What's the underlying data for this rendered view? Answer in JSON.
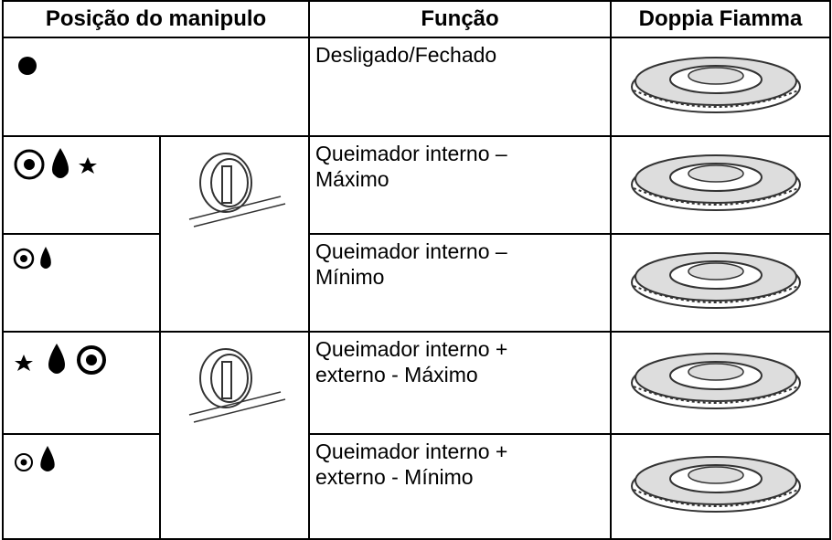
{
  "table": {
    "header": [
      "Posição do manipulo",
      "Função",
      "Doppia Fiamma"
    ],
    "rows": [
      {
        "function": [
          "Desligado/Fechado"
        ]
      },
      {
        "function": [
          "Queimador interno –",
          "Máximo"
        ]
      },
      {
        "function": [
          "Queimador interno –",
          "Mínimo"
        ]
      },
      {
        "function": [
          "Queimador interno +",
          "externo - Máximo"
        ]
      },
      {
        "function": [
          "Queimador interno +",
          "externo - Mínimo"
        ]
      }
    ]
  }
}
